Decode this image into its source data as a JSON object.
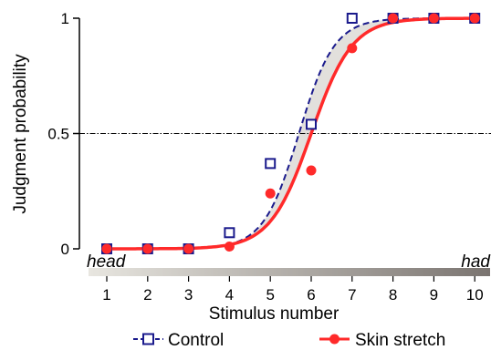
{
  "chart_data": {
    "type": "line",
    "x": [
      1,
      2,
      3,
      4,
      5,
      6,
      7,
      8,
      9,
      10
    ],
    "xlabel": "Stimulus number",
    "ylabel": "Judgment probability",
    "xlim": [
      1,
      10
    ],
    "ylim": [
      0,
      1
    ],
    "y_ticks": [
      "0",
      "0.5",
      "1"
    ],
    "x_ticks": [
      "1",
      "2",
      "3",
      "4",
      "5",
      "6",
      "7",
      "8",
      "9",
      "10"
    ],
    "reference_line": {
      "y": 0.5,
      "style": "dash-dot"
    },
    "continuum_labels": {
      "left": "head",
      "right": "had"
    },
    "series": [
      {
        "name": "Control",
        "marker": "open-square",
        "line": "dashed",
        "color": "#1a1a8c",
        "values": [
          0.0,
          0.0,
          0.0,
          0.07,
          0.37,
          0.54,
          1.0,
          1.0,
          1.0,
          1.0
        ],
        "fit": {
          "midpoint": 5.7,
          "slope": 2.3
        }
      },
      {
        "name": "Skin stretch",
        "marker": "filled-circle",
        "line": "solid",
        "color": "#ff2a2a",
        "values": [
          0.0,
          0.0,
          0.0,
          0.01,
          0.24,
          0.34,
          0.87,
          1.0,
          1.0,
          1.0
        ],
        "fit": {
          "midpoint": 6.0,
          "slope": 2.0
        }
      }
    ],
    "shaded_region": "between fitted curves",
    "legend_position": "bottom"
  }
}
